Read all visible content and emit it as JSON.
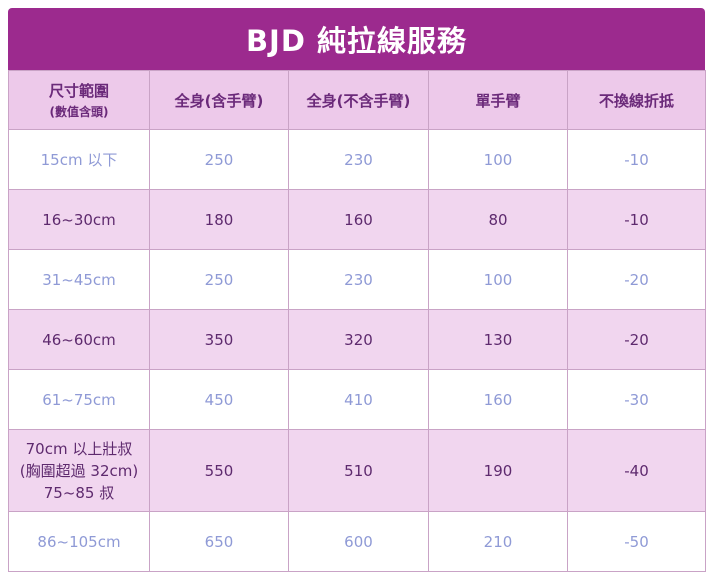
{
  "title": "BJD 純拉線服務",
  "headers": [
    {
      "label": "尺寸範圍",
      "sub": "(數值含頭)"
    },
    {
      "label": "全身(含手臂)",
      "sub": ""
    },
    {
      "label": "全身(不含手臂)",
      "sub": ""
    },
    {
      "label": "單手臂",
      "sub": ""
    },
    {
      "label": "不換線折抵",
      "sub": ""
    }
  ],
  "rows": [
    {
      "size_lines": [
        "15cm 以下"
      ],
      "full_with_arms": "250",
      "full_without_arms": "230",
      "single_arm": "100",
      "no_line_discount": "-10"
    },
    {
      "size_lines": [
        "16~30cm"
      ],
      "full_with_arms": "180",
      "full_without_arms": "160",
      "single_arm": "80",
      "no_line_discount": "-10"
    },
    {
      "size_lines": [
        "31~45cm"
      ],
      "full_with_arms": "250",
      "full_without_arms": "230",
      "single_arm": "100",
      "no_line_discount": "-20"
    },
    {
      "size_lines": [
        "46~60cm"
      ],
      "full_with_arms": "350",
      "full_without_arms": "320",
      "single_arm": "130",
      "no_line_discount": "-20"
    },
    {
      "size_lines": [
        "61~75cm"
      ],
      "full_with_arms": "450",
      "full_without_arms": "410",
      "single_arm": "160",
      "no_line_discount": "-30"
    },
    {
      "size_lines": [
        "70cm 以上壯叔",
        "(胸圍超過 32cm)",
        "75~85 叔"
      ],
      "full_with_arms": "550",
      "full_without_arms": "510",
      "single_arm": "190",
      "no_line_discount": "-40"
    },
    {
      "size_lines": [
        "86~105cm"
      ],
      "full_with_arms": "650",
      "full_without_arms": "600",
      "single_arm": "210",
      "no_line_discount": "-50"
    }
  ],
  "colors": {
    "title_bg": "#9c2a8e",
    "header_bg": "#edc9ea",
    "row_alt_bg": "#f1d6ef",
    "text_purple": "#5e2a6e",
    "text_lavender": "#8f9ad6"
  }
}
